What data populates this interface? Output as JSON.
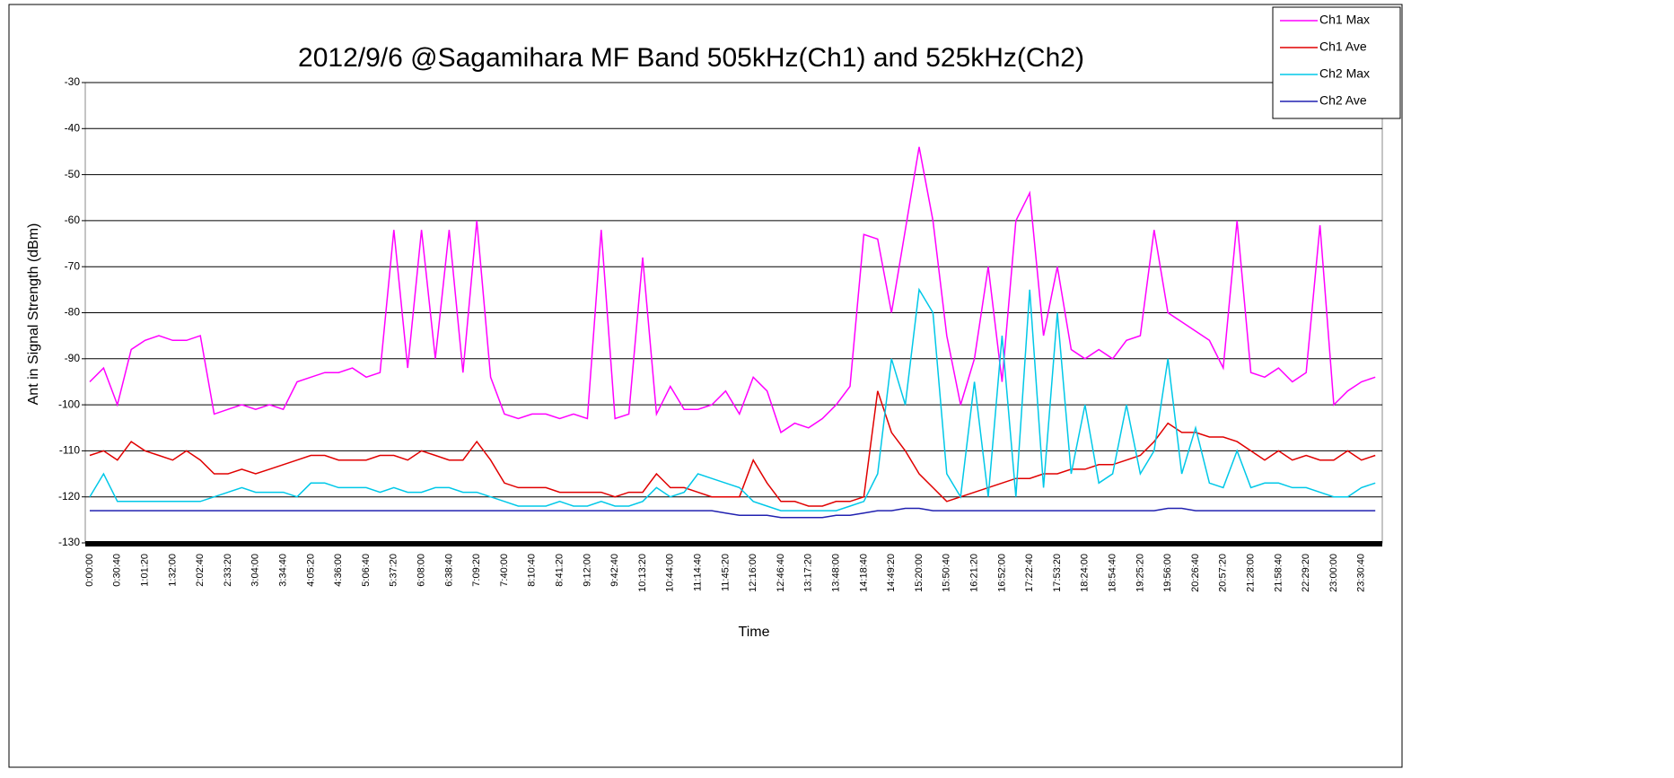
{
  "chart_data": {
    "type": "line",
    "title": "2012/9/6 @Sagamihara MF Band 505kHz(Ch1) and 525kHz(Ch2)",
    "x_label": "Time",
    "y_label": "Ant in Signal Strength (dBm)",
    "categories": [
      "0:00:00",
      null,
      "0:30:40",
      null,
      "1:01:20",
      null,
      "1:32:00",
      null,
      "2:02:40",
      null,
      "2:33:20",
      null,
      "3:04:00",
      null,
      "3:34:40",
      null,
      "4:05:20",
      null,
      "4:36:00",
      null,
      "5:06:40",
      null,
      "5:37:20",
      null,
      "6:08:00",
      null,
      "6:38:40",
      null,
      "7:09:20",
      null,
      "7:40:00",
      null,
      "8:10:40",
      null,
      "8:41:20",
      null,
      "9:12:00",
      null,
      "9:42:40",
      null,
      "10:13:20",
      null,
      "10:44:00",
      null,
      "11:14:40",
      null,
      "11:45:20",
      null,
      "12:16:00",
      null,
      "12:46:40",
      null,
      "13:17:20",
      null,
      "13:48:00",
      null,
      "14:18:40",
      null,
      "14:49:20",
      null,
      "15:20:00",
      null,
      "15:50:40",
      null,
      "16:21:20",
      null,
      "16:52:00",
      null,
      "17:22:40",
      null,
      "17:53:20",
      null,
      "18:24:00",
      null,
      "18:54:40",
      null,
      "19:25:20",
      null,
      "19:56:00",
      null,
      "20:26:40",
      null,
      "20:57:20",
      null,
      "21:28:00",
      null,
      "21:58:40",
      null,
      "22:29:20",
      null,
      "23:00:00",
      null,
      "23:30:40",
      null
    ],
    "series": [
      {
        "name": "Ch1 Max",
        "color": "#ff00ff",
        "values": [
          -95,
          -92,
          -100,
          -88,
          -86,
          -85,
          -86,
          -86,
          -85,
          -102,
          -101,
          -100,
          -101,
          -100,
          -101,
          -95,
          -94,
          -93,
          -93,
          -92,
          -94,
          -93,
          -62,
          -92,
          -62,
          -90,
          -62,
          -93,
          -60,
          -94,
          -102,
          -103,
          -102,
          -102,
          -103,
          -102,
          -103,
          -62,
          -103,
          -102,
          -68,
          -102,
          -96,
          -101,
          -101,
          -100,
          -97,
          -102,
          -94,
          -97,
          -106,
          -104,
          -105,
          -103,
          -100,
          -96,
          -63,
          -64,
          -80,
          -62,
          -44,
          -60,
          -85,
          -100,
          -90,
          -70,
          -95,
          -60,
          -54,
          -85,
          -70,
          -88,
          -90,
          -88,
          -90,
          -86,
          -85,
          -62,
          -80,
          -82,
          -84,
          -86,
          -92,
          -60,
          -93,
          -94,
          -92,
          -95,
          -93,
          -61,
          -100,
          -97,
          -95,
          -94
        ]
      },
      {
        "name": "Ch1 Ave",
        "color": "#e00000",
        "values": [
          -111,
          -110,
          -112,
          -108,
          -110,
          -111,
          -112,
          -110,
          -112,
          -115,
          -115,
          -114,
          -115,
          -114,
          -113,
          -112,
          -111,
          -111,
          -112,
          -112,
          -112,
          -111,
          -111,
          -112,
          -110,
          -111,
          -112,
          -112,
          -108,
          -112,
          -117,
          -118,
          -118,
          -118,
          -119,
          -119,
          -119,
          -119,
          -120,
          -119,
          -119,
          -115,
          -118,
          -118,
          -119,
          -120,
          -120,
          -120,
          -112,
          -117,
          -121,
          -121,
          -122,
          -122,
          -121,
          -121,
          -120,
          -97,
          -106,
          -110,
          -115,
          -118,
          -121,
          -120,
          -119,
          -118,
          -117,
          -116,
          -116,
          -115,
          -115,
          -114,
          -114,
          -113,
          -113,
          -112,
          -111,
          -108,
          -104,
          -106,
          -106,
          -107,
          -107,
          -108,
          -110,
          -112,
          -110,
          -112,
          -111,
          -112,
          -112,
          -110,
          -112,
          -111
        ]
      },
      {
        "name": "Ch2 Max",
        "color": "#00c8e8",
        "values": [
          -120,
          -115,
          -121,
          -121,
          -121,
          -121,
          -121,
          -121,
          -121,
          -120,
          -119,
          -118,
          -119,
          -119,
          -119,
          -120,
          -117,
          -117,
          -118,
          -118,
          -118,
          -119,
          -118,
          -119,
          -119,
          -118,
          -118,
          -119,
          -119,
          -120,
          -121,
          -122,
          -122,
          -122,
          -121,
          -122,
          -122,
          -121,
          -122,
          -122,
          -121,
          -118,
          -120,
          -119,
          -115,
          -116,
          -117,
          -118,
          -121,
          -122,
          -123,
          -123,
          -123,
          -123,
          -123,
          -122,
          -121,
          -115,
          -90,
          -100,
          -75,
          -80,
          -115,
          -120,
          -95,
          -120,
          -85,
          -120,
          -75,
          -118,
          -80,
          -115,
          -100,
          -117,
          -115,
          -100,
          -115,
          -110,
          -90,
          -115,
          -105,
          -117,
          -118,
          -110,
          -118,
          -117,
          -117,
          -118,
          -118,
          -119,
          -120,
          -120,
          -118,
          -117
        ]
      },
      {
        "name": "Ch2 Ave",
        "color": "#2020b0",
        "values": [
          -123,
          -123,
          -123,
          -123,
          -123,
          -123,
          -123,
          -123,
          -123,
          -123,
          -123,
          -123,
          -123,
          -123,
          -123,
          -123,
          -123,
          -123,
          -123,
          -123,
          -123,
          -123,
          -123,
          -123,
          -123,
          -123,
          -123,
          -123,
          -123,
          -123,
          -123,
          -123,
          -123,
          -123,
          -123,
          -123,
          -123,
          -123,
          -123,
          -123,
          -123,
          -123,
          -123,
          -123,
          -123,
          -123,
          -123.5,
          -124,
          -124,
          -124,
          -124.5,
          -124.5,
          -124.5,
          -124.5,
          -124,
          -124,
          -123.5,
          -123,
          -123,
          -122.5,
          -122.5,
          -123,
          -123,
          -123,
          -123,
          -123,
          -123,
          -123,
          -123,
          -123,
          -123,
          -123,
          -123,
          -123,
          -123,
          -123,
          -123,
          -123,
          -122.5,
          -122.5,
          -123,
          -123,
          -123,
          -123,
          -123,
          -123,
          -123,
          -123,
          -123,
          -123,
          -123,
          -123,
          -123,
          -123
        ]
      }
    ],
    "ylim": [
      -130,
      -30
    ],
    "yticks": [
      -30,
      -40,
      -50,
      -60,
      -70,
      -80,
      -90,
      -100,
      -110,
      -120,
      -130
    ],
    "grid": true,
    "legend": "top-right"
  }
}
